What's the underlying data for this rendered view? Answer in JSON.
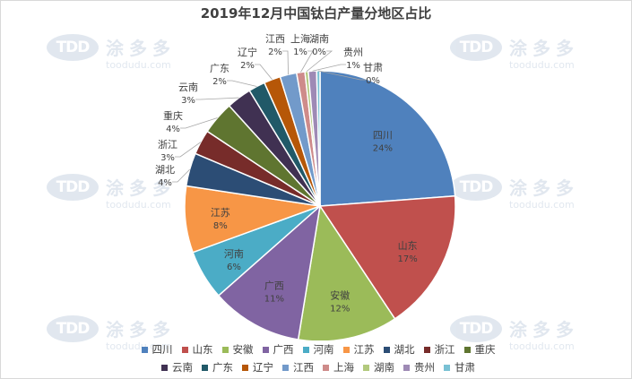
{
  "chart_data": {
    "type": "pie",
    "title": "2019年12月中国钛白产量分地区占比",
    "slices": [
      {
        "name": "四川",
        "value": 24,
        "label": "24%",
        "color": "#4f81bd"
      },
      {
        "name": "山东",
        "value": 17,
        "label": "17%",
        "color": "#c0504d"
      },
      {
        "name": "安徽",
        "value": 12,
        "label": "12%",
        "color": "#9bbb59"
      },
      {
        "name": "广西",
        "value": 11,
        "label": "11%",
        "color": "#8064a2"
      },
      {
        "name": "河南",
        "value": 6,
        "label": "6%",
        "color": "#4bacc6"
      },
      {
        "name": "江苏",
        "value": 8,
        "label": "8%",
        "color": "#f79646"
      },
      {
        "name": "湖北",
        "value": 4,
        "label": "4%",
        "color": "#2c4d75"
      },
      {
        "name": "浙江",
        "value": 3,
        "label": "3%",
        "color": "#772c2a"
      },
      {
        "name": "重庆",
        "value": 4,
        "label": "4%",
        "color": "#5f7530"
      },
      {
        "name": "云南",
        "value": 3,
        "label": "3%",
        "color": "#403152"
      },
      {
        "name": "广东",
        "value": 2,
        "label": "2%",
        "color": "#215968"
      },
      {
        "name": "辽宁",
        "value": 2,
        "label": "2%",
        "color": "#b65708"
      },
      {
        "name": "江西",
        "value": 2,
        "label": "2%",
        "color": "#729aca"
      },
      {
        "name": "上海",
        "value": 1,
        "label": "1%",
        "color": "#ce8b8a"
      },
      {
        "name": "湖南",
        "value": 0.4,
        "label": "0%",
        "color": "#b2c97d"
      },
      {
        "name": "贵州",
        "value": 1,
        "label": "1%",
        "color": "#9e8ab5"
      },
      {
        "name": "甘肃",
        "value": 0.4,
        "label": "0%",
        "color": "#79c1d4"
      }
    ],
    "legend_position": "bottom"
  },
  "watermark": {
    "logo": "TDD",
    "name": "涂多多",
    "url": "toodudu.com"
  }
}
